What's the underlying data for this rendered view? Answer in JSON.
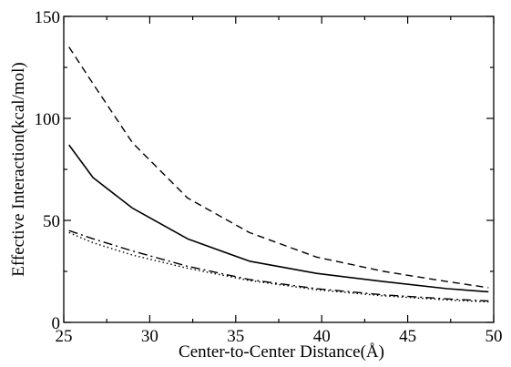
{
  "chart_data": {
    "type": "line",
    "title": "",
    "xlabel": "Center-to-Center Distance(Å)",
    "ylabel": "Effective Interaction(kcal/mol)",
    "xlim": [
      25,
      50
    ],
    "ylim": [
      0,
      150
    ],
    "xticks": [
      25,
      30,
      35,
      40,
      45,
      50
    ],
    "yticks": [
      0,
      50,
      100,
      150
    ],
    "xtick_labels": [
      "25",
      "30",
      "35",
      "40",
      "45",
      "50"
    ],
    "ytick_labels": [
      "0",
      "50",
      "100",
      "150"
    ],
    "grid": false,
    "legend": "none",
    "series": [
      {
        "style": "dashed",
        "color": "#000000",
        "x": [
          25.3,
          26.7,
          29.0,
          32.2,
          35.8,
          39.7,
          43.6,
          47.3,
          49.7
        ],
        "y": [
          135,
          117,
          88,
          61,
          44,
          32,
          25,
          20,
          17
        ]
      },
      {
        "style": "solid",
        "color": "#000000",
        "x": [
          25.3,
          26.7,
          29.0,
          32.2,
          35.8,
          39.7,
          43.6,
          47.3,
          49.7
        ],
        "y": [
          87,
          71,
          56,
          41,
          30,
          24,
          20,
          16.5,
          15
        ]
      },
      {
        "style": "dash-dot",
        "color": "#000000",
        "x": [
          25.3,
          26.7,
          29.0,
          32.2,
          35.8,
          39.7,
          43.6,
          47.3,
          49.7
        ],
        "y": [
          45,
          41,
          35,
          27.5,
          21,
          16.5,
          13.5,
          11.5,
          10.5
        ]
      },
      {
        "style": "dotted",
        "color": "#000000",
        "x": [
          25.3,
          26.7,
          29.0,
          32.2,
          35.8,
          39.7,
          43.6,
          47.3,
          49.7
        ],
        "y": [
          44,
          39,
          33,
          26.5,
          20.5,
          16,
          13,
          11,
          10
        ]
      }
    ]
  }
}
